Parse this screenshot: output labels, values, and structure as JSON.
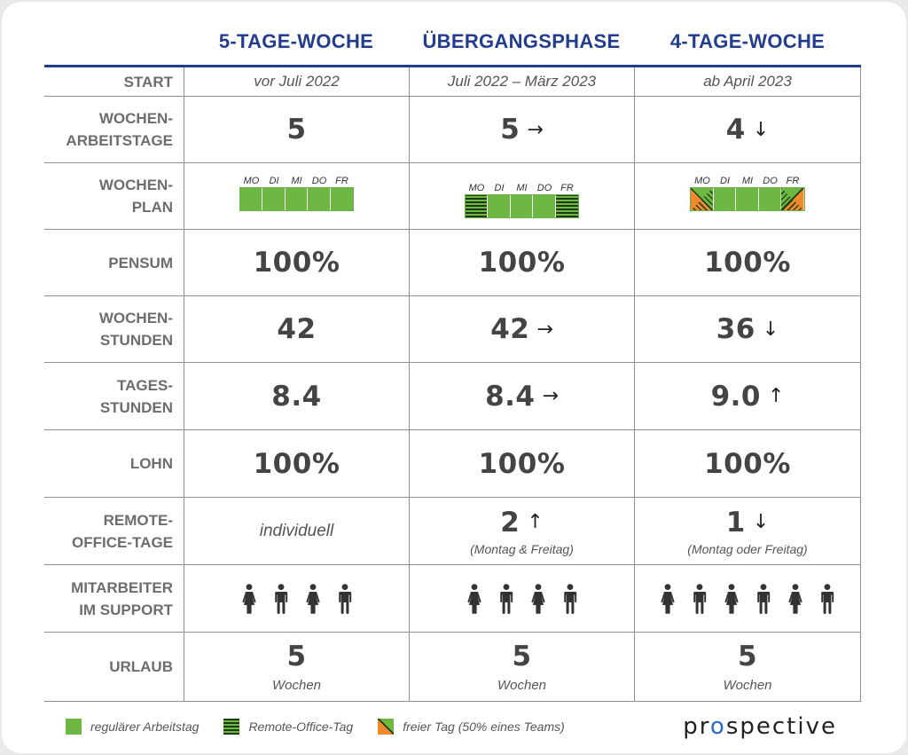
{
  "columns": {
    "c1": "5-TAGE-WOCHE",
    "c2": "ÜBERGANGSPHASE",
    "c3": "4-TAGE-WOCHE"
  },
  "rows": {
    "start": {
      "label": "START",
      "c1": "vor Juli 2022",
      "c2": "Juli 2022 – März 2023",
      "c3": "ab April 2023"
    },
    "arbeitstage": {
      "label_1": "WOCHEN-",
      "label_2": "ARBEITSTAGE",
      "c1": "5",
      "c2": "5",
      "c2_arrow": "→",
      "c3": "4",
      "c3_arrow": "↓"
    },
    "plan": {
      "label_1": "WOCHEN-",
      "label_2": "PLAN",
      "days": [
        "MO",
        "DI",
        "MI",
        "DO",
        "FR"
      ]
    },
    "pensum": {
      "label": "PENSUM",
      "c1": "100%",
      "c2": "100%",
      "c3": "100%"
    },
    "stunden": {
      "label_1": "WOCHEN-",
      "label_2": "STUNDEN",
      "c1": "42",
      "c2": "42",
      "c2_arrow": "→",
      "c3": "36",
      "c3_arrow": "↓"
    },
    "tagesstunden": {
      "label_1": "TAGES-",
      "label_2": "STUNDEN",
      "c1": "8.4",
      "c2": "8.4",
      "c2_arrow": "→",
      "c3": "9.0",
      "c3_arrow": "↑"
    },
    "lohn": {
      "label": "LOHN",
      "c1": "100%",
      "c2": "100%",
      "c3": "100%"
    },
    "remote": {
      "label_1": "REMOTE-",
      "label_2": "OFFICE-TAGE",
      "c1": "individuell",
      "c2": "2",
      "c2_arrow": "↑",
      "c2_note": "(Montag & Freitag)",
      "c3": "1",
      "c3_arrow": "↓",
      "c3_note": "(Montag oder Freitag)"
    },
    "support": {
      "label_1": "MITARBEITER",
      "label_2": "IM SUPPORT",
      "c1_count": 4,
      "c2_count": 4,
      "c3_count": 6
    },
    "urlaub": {
      "label": "URLAUB",
      "c1": "5",
      "c1_unit": "Wochen",
      "c2": "5",
      "c2_unit": "Wochen",
      "c3": "5",
      "c3_unit": "Wochen"
    }
  },
  "legend": {
    "regular": "regulärer Arbeitstag",
    "remote": "Remote-Office-Tag",
    "free": "freier Tag (50% eines Teams)"
  },
  "logo": {
    "part1": "pr",
    "accent": "o",
    "part2": "spective"
  },
  "colors": {
    "accent": "#233d8e",
    "green": "#6db843",
    "dark_green": "#1d3a12",
    "orange": "#f08a2c"
  }
}
